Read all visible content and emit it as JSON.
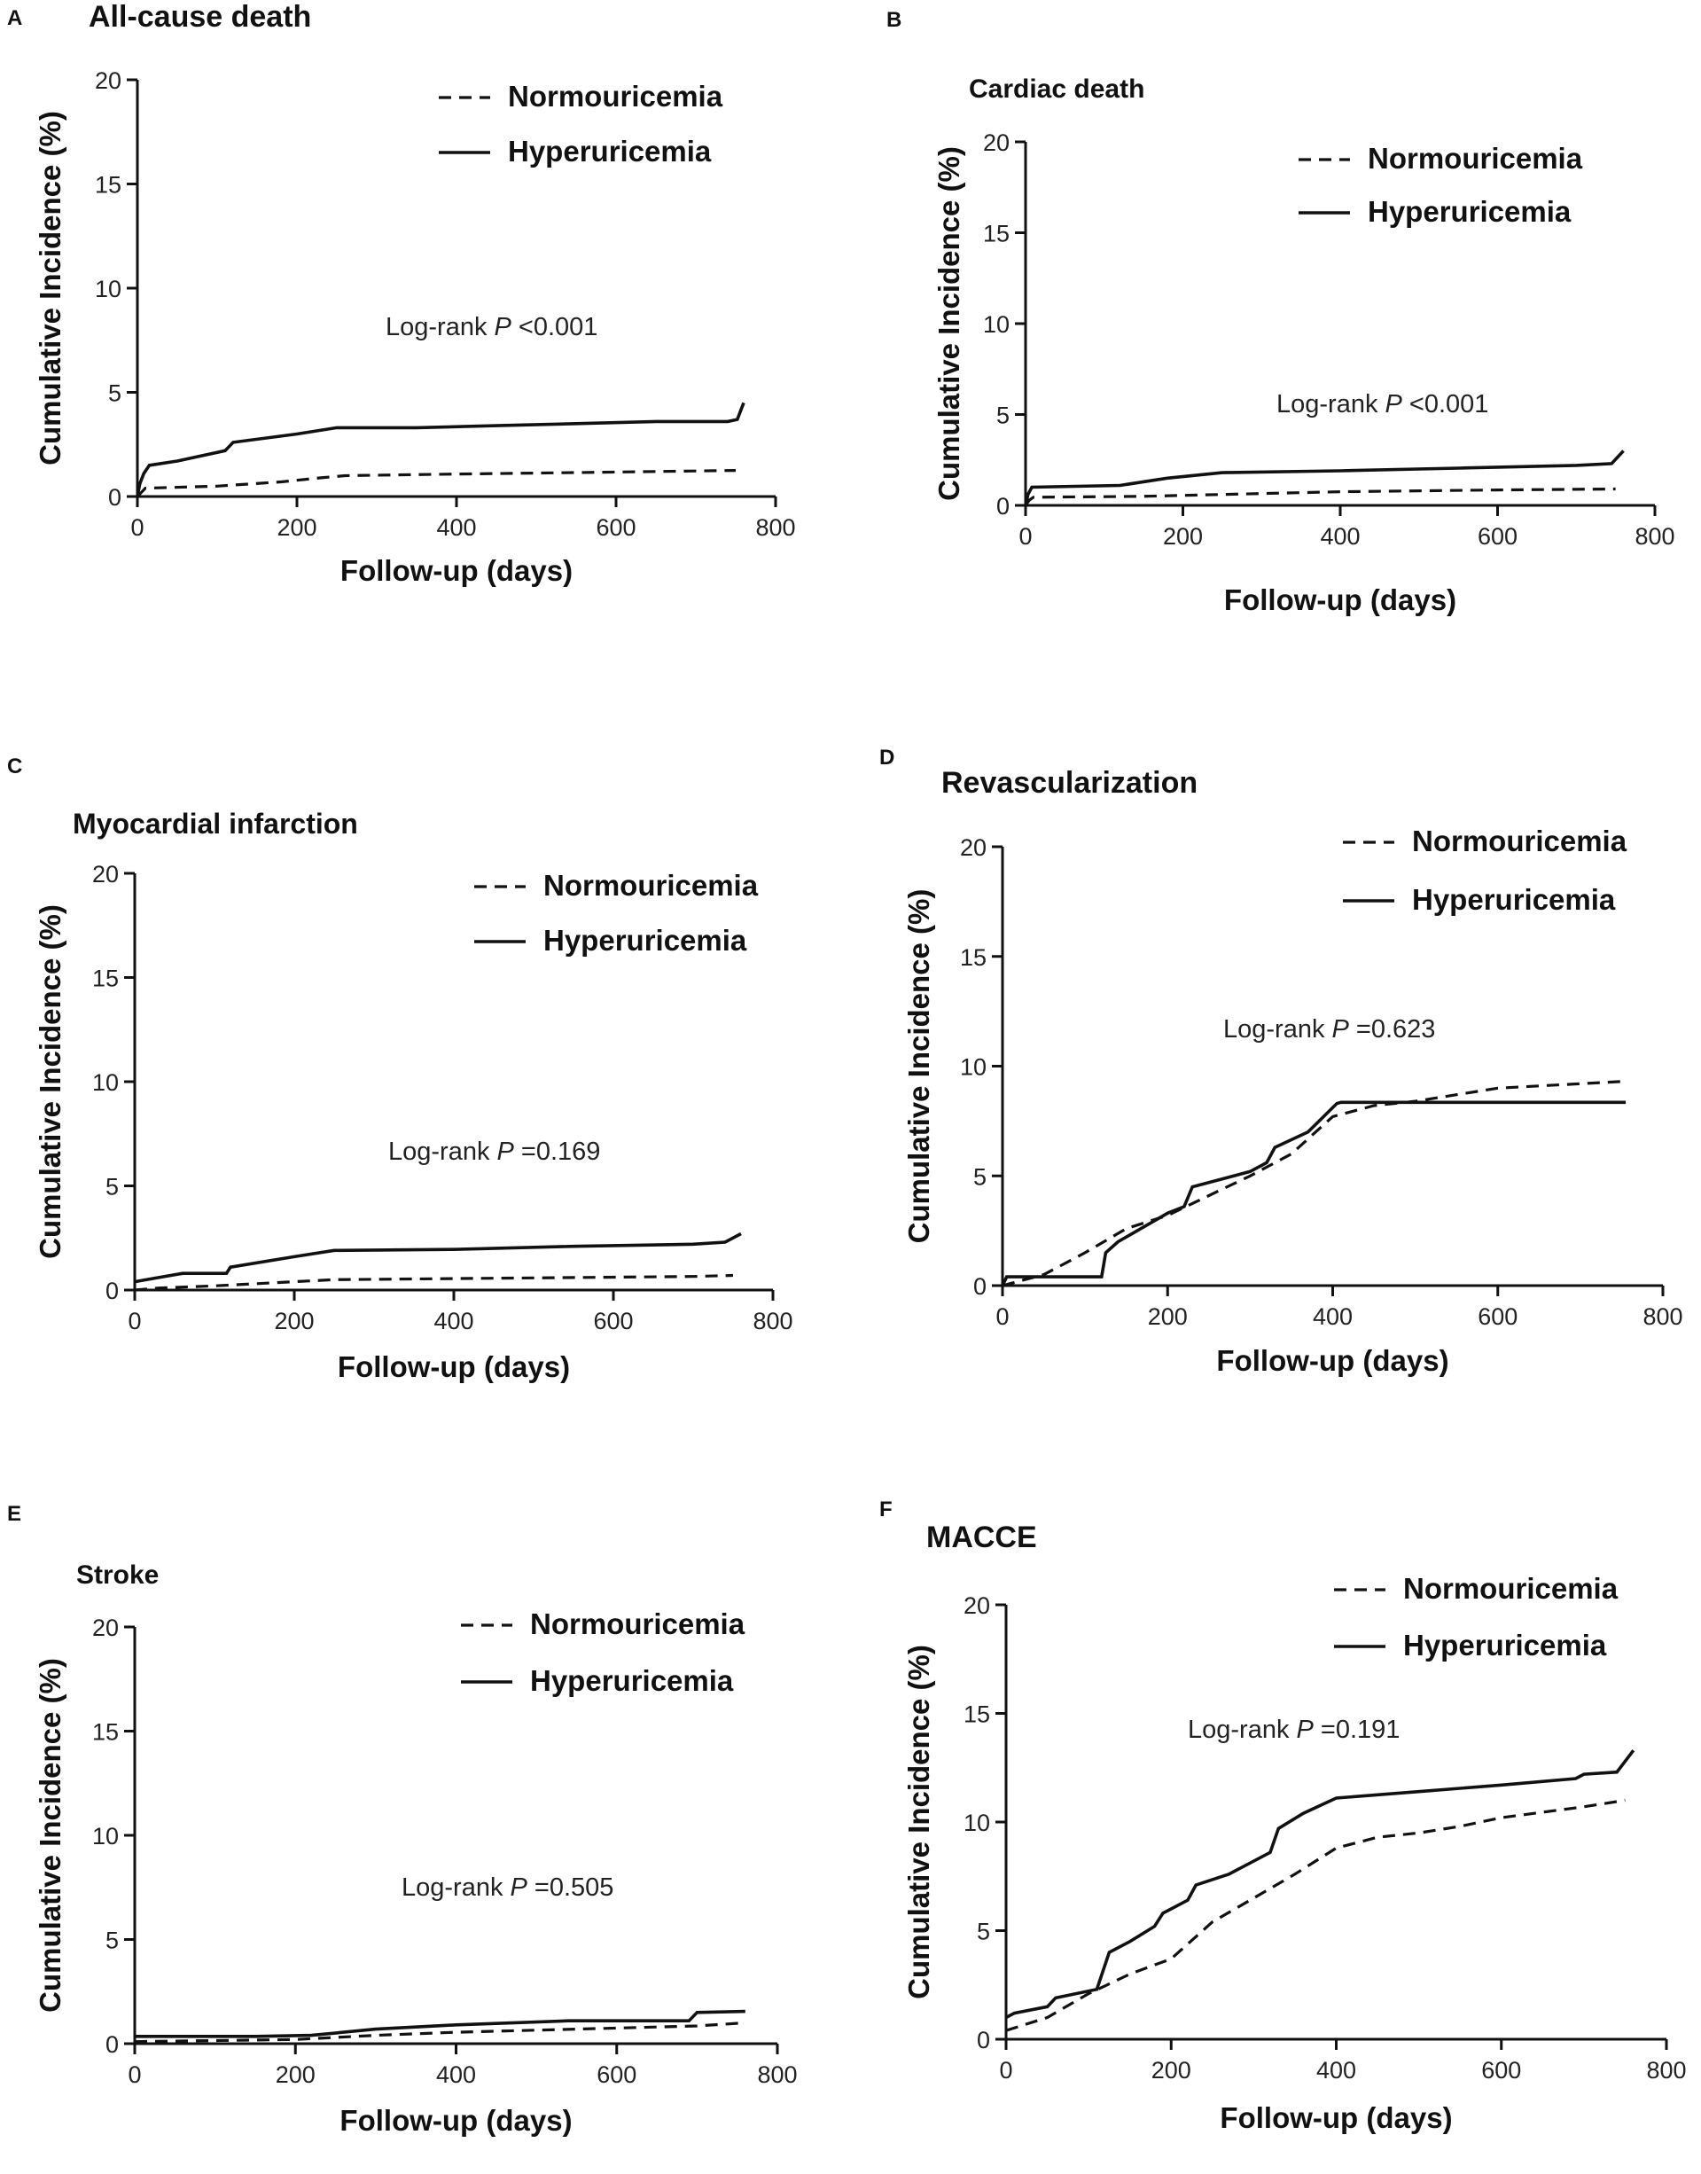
{
  "figure": {
    "legend_labels": [
      "Normouricemia",
      "Hyperuricemia"
    ],
    "xlabel": "Follow-up (days)",
    "ylabel": "Cumulative Incidence (%)",
    "annotation_prefix": "Log-rank ",
    "annotation_p": "P"
  },
  "chart_data": [
    {
      "panel": "A",
      "type": "line",
      "title": "All-cause death",
      "xlabel": "Follow-up (days)",
      "ylabel": "Cumulative Incidence (%)",
      "xlim": [
        0,
        800
      ],
      "ylim": [
        0,
        20
      ],
      "xticks": [
        0,
        200,
        400,
        600,
        800
      ],
      "yticks": [
        0,
        5,
        10,
        15,
        20
      ],
      "legend": "top-right",
      "annotation_value": " <0.001",
      "series": [
        {
          "name": "Normouricemia",
          "style": "dashed",
          "x": [
            0,
            5,
            10,
            100,
            180,
            230,
            260,
            350,
            450,
            550,
            650,
            750
          ],
          "y": [
            0,
            0.2,
            0.4,
            0.5,
            0.7,
            0.9,
            1.0,
            1.05,
            1.1,
            1.15,
            1.2,
            1.25
          ]
        },
        {
          "name": "Hyperuricemia",
          "style": "solid",
          "x": [
            0,
            3,
            8,
            15,
            50,
            110,
            120,
            200,
            250,
            350,
            450,
            550,
            650,
            740,
            752,
            760
          ],
          "y": [
            0,
            0.6,
            1.1,
            1.5,
            1.7,
            2.2,
            2.6,
            3.0,
            3.3,
            3.3,
            3.4,
            3.5,
            3.6,
            3.6,
            3.7,
            4.5
          ]
        }
      ]
    },
    {
      "panel": "B",
      "type": "line",
      "title": "Cardiac death",
      "xlabel": "Follow-up (days)",
      "ylabel": "Cumulative Incidence (%)",
      "xlim": [
        0,
        800
      ],
      "ylim": [
        0,
        20
      ],
      "xticks": [
        0,
        200,
        400,
        600,
        800
      ],
      "yticks": [
        0,
        5,
        10,
        15,
        20
      ],
      "legend": "top-right",
      "annotation_value": " <0.001",
      "series": [
        {
          "name": "Normouricemia",
          "style": "dashed",
          "x": [
            0,
            5,
            10,
            150,
            250,
            400,
            500,
            600,
            750
          ],
          "y": [
            0,
            0.3,
            0.45,
            0.5,
            0.6,
            0.75,
            0.8,
            0.85,
            0.9
          ]
        },
        {
          "name": "Hyperuricemia",
          "style": "solid",
          "x": [
            0,
            3,
            8,
            120,
            180,
            250,
            400,
            550,
            700,
            745,
            760
          ],
          "y": [
            0,
            0.6,
            1.0,
            1.1,
            1.5,
            1.8,
            1.9,
            2.05,
            2.2,
            2.3,
            3.0
          ]
        }
      ]
    },
    {
      "panel": "C",
      "type": "line",
      "title": "Myocardial infarction",
      "xlabel": "Follow-up (days)",
      "ylabel": "Cumulative Incidence (%)",
      "xlim": [
        0,
        800
      ],
      "ylim": [
        0,
        20
      ],
      "xticks": [
        0,
        200,
        400,
        600,
        800
      ],
      "yticks": [
        0,
        5,
        10,
        15,
        20
      ],
      "legend": "top-right",
      "annotation_value": " =0.169",
      "series": [
        {
          "name": "Normouricemia",
          "style": "dashed",
          "x": [
            0,
            30,
            100,
            200,
            250,
            400,
            550,
            700,
            750
          ],
          "y": [
            0,
            0.1,
            0.2,
            0.4,
            0.5,
            0.55,
            0.6,
            0.65,
            0.7
          ]
        },
        {
          "name": "Hyperuricemia",
          "style": "solid",
          "x": [
            0,
            30,
            60,
            115,
            120,
            200,
            250,
            400,
            550,
            700,
            740,
            760
          ],
          "y": [
            0.4,
            0.6,
            0.8,
            0.8,
            1.1,
            1.6,
            1.9,
            1.95,
            2.1,
            2.2,
            2.3,
            2.7
          ]
        }
      ]
    },
    {
      "panel": "D",
      "type": "line",
      "title": "Revascularization",
      "xlabel": "Follow-up (days)",
      "ylabel": "Cumulative Incidence (%)",
      "xlim": [
        0,
        800
      ],
      "ylim": [
        0,
        20
      ],
      "xticks": [
        0,
        200,
        400,
        600,
        800
      ],
      "yticks": [
        0,
        5,
        10,
        15,
        20
      ],
      "legend": "top-right",
      "annotation_value": " =0.623",
      "series": [
        {
          "name": "Normouricemia",
          "style": "dashed",
          "x": [
            0,
            50,
            100,
            150,
            200,
            250,
            300,
            350,
            400,
            450,
            500,
            550,
            600,
            700,
            750
          ],
          "y": [
            0,
            0.5,
            1.5,
            2.6,
            3.2,
            4.1,
            5.0,
            6.0,
            7.7,
            8.2,
            8.4,
            8.7,
            9.0,
            9.2,
            9.3
          ]
        },
        {
          "name": "Hyperuricemia",
          "style": "solid",
          "x": [
            0,
            5,
            120,
            125,
            140,
            200,
            220,
            230,
            260,
            300,
            320,
            330,
            370,
            405,
            410,
            500,
            600,
            755
          ],
          "y": [
            0,
            0.4,
            0.4,
            1.5,
            2.0,
            3.3,
            3.6,
            4.5,
            4.8,
            5.2,
            5.6,
            6.3,
            7.0,
            8.3,
            8.35,
            8.35,
            8.35,
            8.35
          ]
        }
      ]
    },
    {
      "panel": "E",
      "type": "line",
      "title": "Stroke",
      "xlabel": "Follow-up (days)",
      "ylabel": "Cumulative Incidence (%)",
      "xlim": [
        0,
        800
      ],
      "ylim": [
        0,
        20
      ],
      "xticks": [
        0,
        200,
        400,
        600,
        800
      ],
      "yticks": [
        0,
        5,
        10,
        15,
        20
      ],
      "legend": "top-right",
      "annotation_value": " =0.505",
      "series": [
        {
          "name": "Normouricemia",
          "style": "dashed",
          "x": [
            0,
            100,
            200,
            300,
            400,
            550,
            700,
            760
          ],
          "y": [
            0.1,
            0.15,
            0.2,
            0.4,
            0.55,
            0.7,
            0.85,
            1.0
          ]
        },
        {
          "name": "Hyperuricemia",
          "style": "solid",
          "x": [
            0,
            150,
            220,
            300,
            400,
            540,
            690,
            700,
            760
          ],
          "y": [
            0.35,
            0.35,
            0.4,
            0.7,
            0.9,
            1.1,
            1.1,
            1.5,
            1.55
          ]
        }
      ]
    },
    {
      "panel": "F",
      "type": "line",
      "title": "MACCE",
      "xlabel": "Follow-up (days)",
      "ylabel": "Cumulative Incidence (%)",
      "xlim": [
        0,
        800
      ],
      "ylim": [
        0,
        20
      ],
      "xticks": [
        0,
        200,
        400,
        600,
        800
      ],
      "yticks": [
        0,
        5,
        10,
        15,
        20
      ],
      "legend": "top-right",
      "annotation_value": " =0.191",
      "series": [
        {
          "name": "Normouricemia",
          "style": "dashed",
          "x": [
            0,
            50,
            100,
            150,
            200,
            250,
            300,
            350,
            400,
            450,
            500,
            550,
            600,
            700,
            750
          ],
          "y": [
            0.4,
            1.0,
            2.1,
            3.0,
            3.7,
            5.4,
            6.5,
            7.6,
            8.8,
            9.3,
            9.5,
            9.8,
            10.2,
            10.7,
            11.0
          ]
        },
        {
          "name": "Hyperuricemia",
          "style": "solid",
          "x": [
            0,
            10,
            50,
            60,
            110,
            125,
            150,
            180,
            190,
            220,
            230,
            270,
            320,
            330,
            360,
            400,
            500,
            600,
            690,
            700,
            740,
            760
          ],
          "y": [
            1.0,
            1.2,
            1.5,
            1.9,
            2.3,
            4.0,
            4.5,
            5.2,
            5.8,
            6.4,
            7.1,
            7.6,
            8.6,
            9.7,
            10.4,
            11.1,
            11.4,
            11.7,
            12.0,
            12.2,
            12.3,
            13.3
          ]
        }
      ]
    }
  ]
}
